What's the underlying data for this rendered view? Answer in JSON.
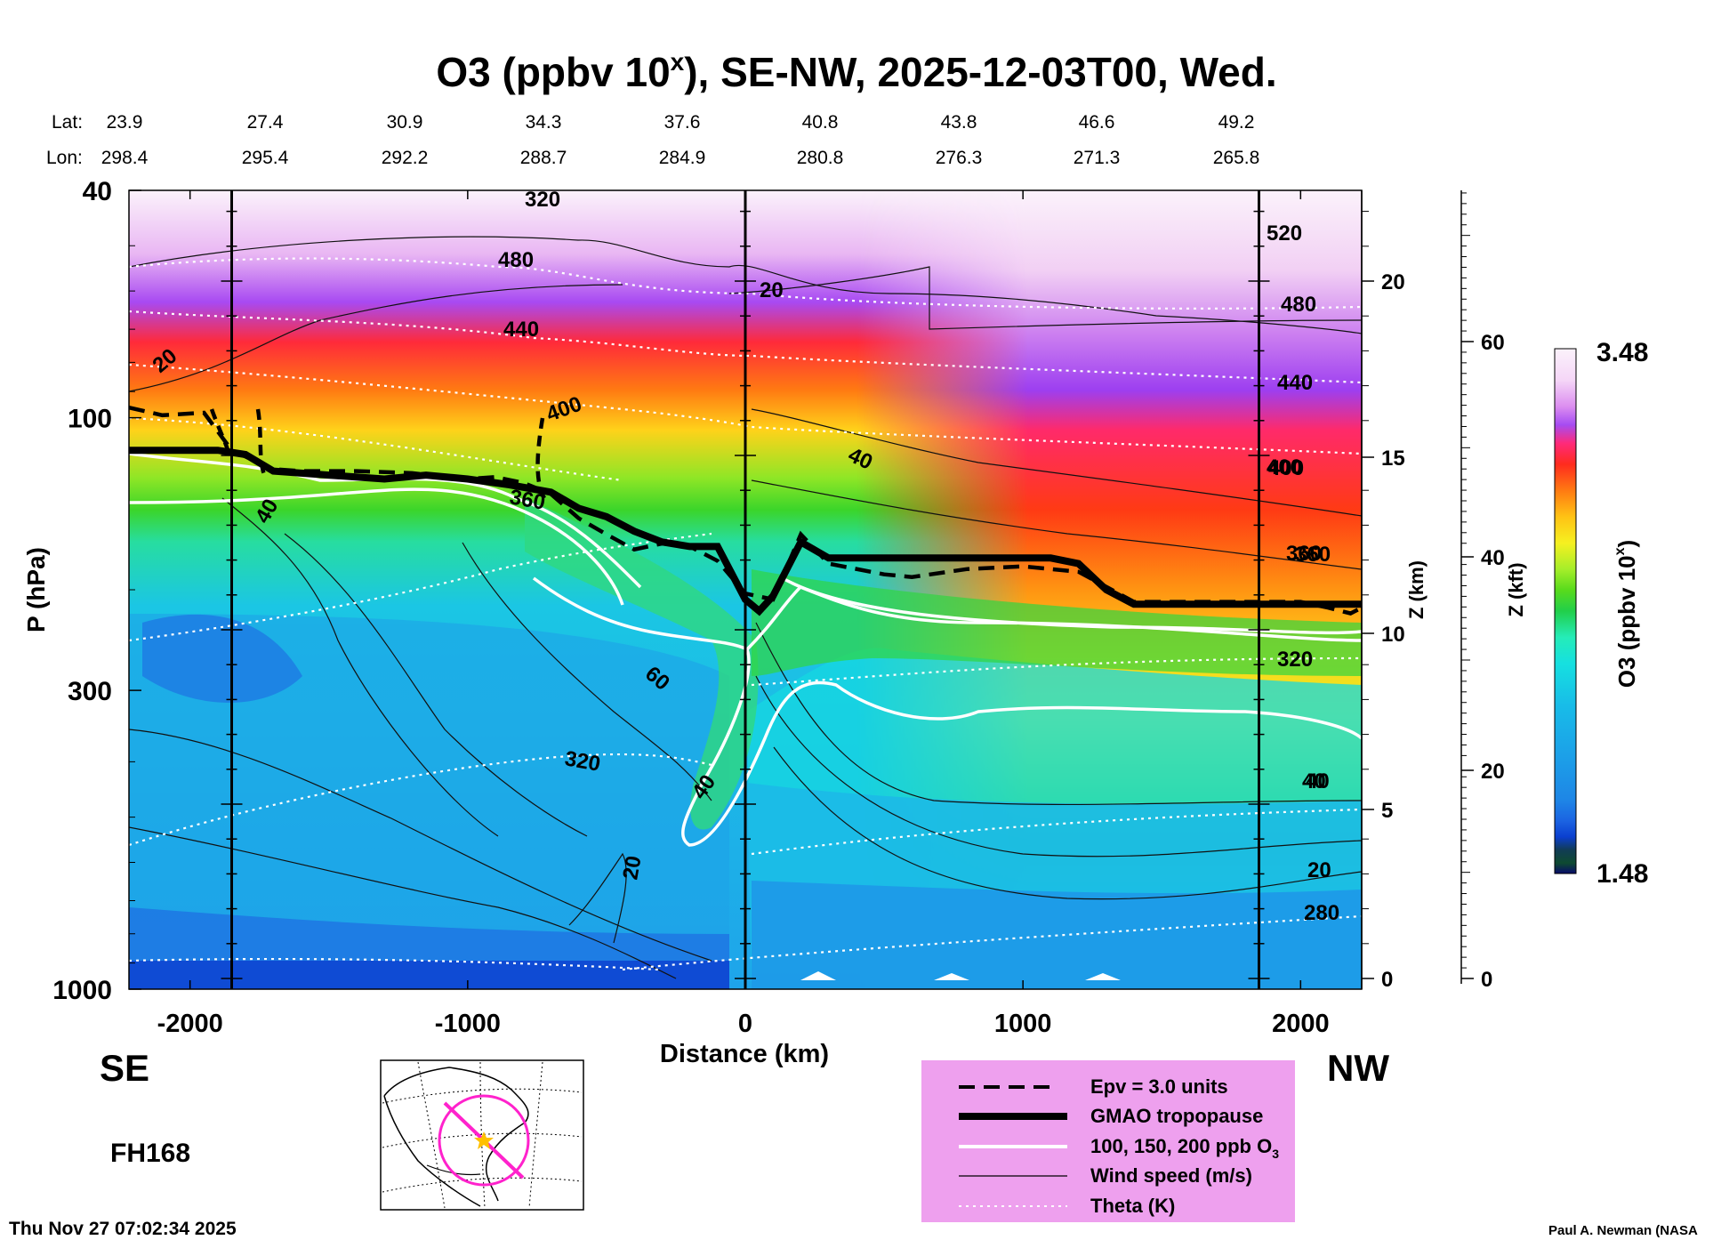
{
  "chart_data": {
    "type": "heatmap",
    "title": "O3 (ppbv 10",
    "title_sup": "x",
    "title_rest": "), SE-NW, 2025-12-03T00, Wed.",
    "lat_label": "Lat:",
    "lon_label": "Lon:",
    "lat": [
      "23.9",
      "27.4",
      "30.9",
      "34.3",
      "37.6",
      "40.8",
      "43.8",
      "46.6",
      "49.2"
    ],
    "lon": [
      "298.4",
      "295.4",
      "292.2",
      "288.7",
      "284.9",
      "280.8",
      "276.3",
      "271.3",
      "265.8"
    ],
    "xlabel": "Distance (km)",
    "xlim": [
      -2220,
      2220
    ],
    "xticks": [
      -2000,
      -1000,
      0,
      1000,
      2000
    ],
    "xtick_labels": [
      "-2000",
      "-1000",
      "0",
      "1000",
      "2000"
    ],
    "ylabel": "P (hPa)",
    "ylim": [
      1000,
      40
    ],
    "yticks": [
      40,
      100,
      300,
      1000
    ],
    "ytick_labels": [
      "40",
      "100",
      "300",
      "1000"
    ],
    "z_km_label": "Z (km)",
    "z_km_ticks": [
      0,
      5,
      10,
      15,
      20
    ],
    "z_km_tick_labels": [
      "0",
      "5",
      "10",
      "15",
      "20"
    ],
    "z_kft_label": "Z (kft)",
    "z_kft_ticks": [
      0,
      20,
      40,
      60
    ],
    "z_kft_tick_labels": [
      "0",
      "20",
      "40",
      "60"
    ],
    "colorbar": {
      "label": "O3 (ppbv 10",
      "label_sup": "x",
      "label_rest": ")",
      "min": "1.48",
      "max": "3.48"
    },
    "left_side": "SE",
    "right_side": "NW",
    "forecast_hour": "FH168",
    "vertical_lines_km": [
      -1850,
      0,
      1850
    ],
    "tropopause_hpa": {
      "x": [
        -2220,
        -1900,
        -1800,
        -1700,
        -1500,
        -1300,
        -1150,
        -1000,
        -850,
        -700,
        -600,
        -500,
        -400,
        -300,
        -200,
        -100,
        0,
        50,
        100,
        200,
        300,
        500,
        700,
        900,
        1100,
        1200,
        1300,
        1400,
        1600,
        1800,
        2000,
        2220
      ],
      "p": [
        114,
        114,
        116,
        124,
        126,
        128,
        126,
        128,
        131,
        135,
        144,
        149,
        158,
        165,
        168,
        168,
        208,
        218,
        205,
        165,
        176,
        176,
        176,
        176,
        176,
        180,
        200,
        212,
        212,
        212,
        212,
        212
      ]
    },
    "epv_hpa": {
      "x": [
        -2220,
        -2100,
        -1950,
        -1850,
        -1700,
        -1600,
        -1400,
        -1200,
        -1000,
        -900,
        -800,
        -700,
        -600,
        -500,
        -400,
        -300,
        -200,
        -100,
        0,
        100,
        200,
        300,
        500,
        600,
        800,
        1000,
        1200,
        1400,
        1600,
        1800,
        2000,
        2100,
        2180,
        2220
      ],
      "p": [
        96,
        99,
        98,
        114,
        123,
        124,
        124,
        125,
        128,
        127,
        130,
        136,
        150,
        160,
        170,
        166,
        168,
        178,
        203,
        208,
        160,
        180,
        188,
        190,
        184,
        182,
        186,
        210,
        210,
        210,
        210,
        215,
        220,
        215
      ]
    },
    "wind_contour_labels": [
      "20",
      "20",
      "40",
      "40",
      "60",
      "40",
      "40",
      "20",
      "20"
    ],
    "theta_contour_labels": [
      "320",
      "480",
      "440",
      "400",
      "360",
      "320",
      "520",
      "480",
      "440",
      "400",
      "360",
      "320",
      "280"
    ],
    "o3_contour_labels": [
      "400",
      "360",
      "40"
    ],
    "legend": [
      "Epv = 3.0 units",
      "GMAO tropopause",
      "100, 150, 200 ppb O",
      "Wind speed (m/s)",
      "Theta (K)"
    ],
    "legend_sub3": "3"
  },
  "timestamp": "Thu Nov 27 07:02:34 2025",
  "credit": "Paul A. Newman (NASA",
  "colors": {
    "legend_bg": "#EEA0EE",
    "map_line": "#FF22CC",
    "map_star": "#FFC000"
  }
}
